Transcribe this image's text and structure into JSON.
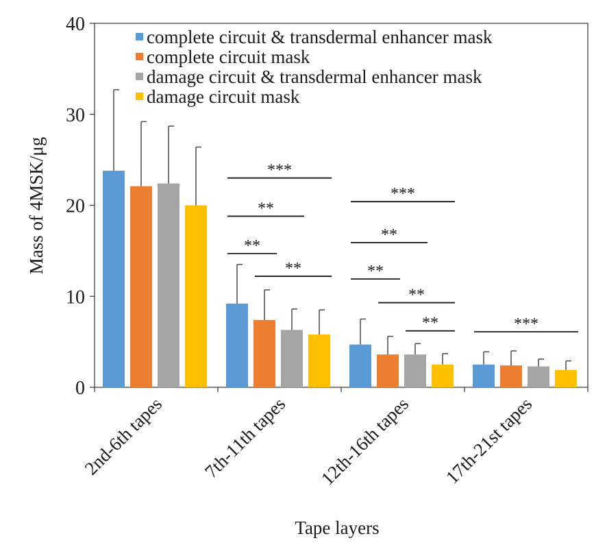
{
  "chart_data": {
    "type": "bar",
    "xlabel": "Tape layers",
    "ylabel": "Mass of 4MSK/μg",
    "ylim": [
      0,
      40
    ],
    "yticks": [
      0,
      10,
      20,
      30,
      40
    ],
    "grid": false,
    "legend_position": "top-right",
    "categories": [
      "2nd-6th tapes",
      "7th-11th tapes",
      "12th-16th tapes",
      "17th-21st tapes"
    ],
    "series": [
      {
        "name": "complete circuit & transdermal enhancer mask",
        "color": "#5B9BD5",
        "values": [
          23.8,
          9.2,
          4.7,
          2.5
        ],
        "errors": [
          8.9,
          4.3,
          2.8,
          1.4
        ]
      },
      {
        "name": "complete circuit mask",
        "color": "#ED7D31",
        "values": [
          22.1,
          7.4,
          3.6,
          2.4
        ],
        "errors": [
          7.1,
          3.3,
          2.0,
          1.6
        ]
      },
      {
        "name": "damage circuit & transdermal enhancer mask",
        "color": "#A5A5A5",
        "values": [
          22.4,
          6.3,
          3.6,
          2.3
        ],
        "errors": [
          6.3,
          2.3,
          1.2,
          0.8
        ]
      },
      {
        "name": "damage circuit mask",
        "color": "#FFC000",
        "values": [
          20.0,
          5.8,
          2.5,
          1.9
        ],
        "errors": [
          6.4,
          2.7,
          1.2,
          1.0
        ]
      }
    ],
    "significance": [
      {
        "category": 1,
        "from_series": 0,
        "to_series": 3,
        "y": 23.0,
        "label": "***"
      },
      {
        "category": 1,
        "from_series": 0,
        "to_series": 2,
        "y": 18.8,
        "label": "**"
      },
      {
        "category": 1,
        "from_series": 0,
        "to_series": 1,
        "y": 14.7,
        "label": "**"
      },
      {
        "category": 1,
        "from_series": 1,
        "to_series": 3,
        "y": 12.2,
        "label": "**"
      },
      {
        "category": 2,
        "from_series": 0,
        "to_series": 3,
        "y": 20.4,
        "label": "***"
      },
      {
        "category": 2,
        "from_series": 0,
        "to_series": 2,
        "y": 15.9,
        "label": "**"
      },
      {
        "category": 2,
        "from_series": 0,
        "to_series": 1,
        "y": 11.9,
        "label": "**"
      },
      {
        "category": 2,
        "from_series": 1,
        "to_series": 3,
        "y": 9.3,
        "label": "**"
      },
      {
        "category": 2,
        "from_series": 2,
        "to_series": 3,
        "y": 6.2,
        "label": "**"
      },
      {
        "category": 3,
        "from_series": 0,
        "to_series": 3,
        "y": 6.1,
        "label": "***"
      }
    ]
  }
}
